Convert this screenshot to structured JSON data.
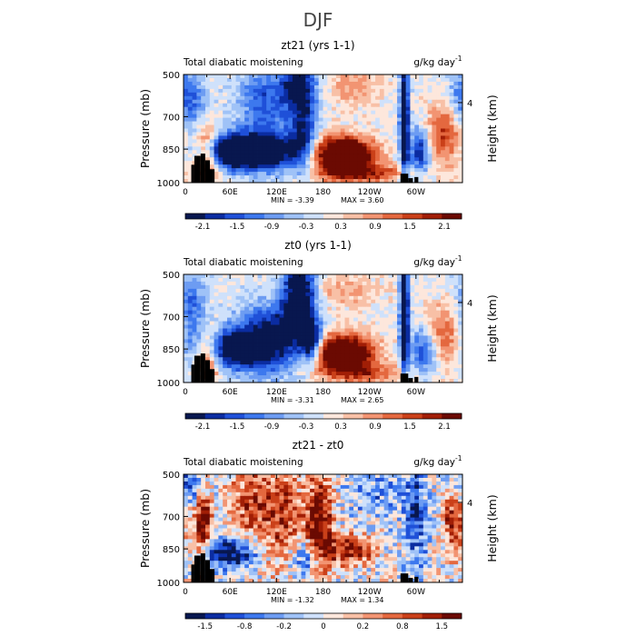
{
  "figure": {
    "title": "DJF"
  },
  "chart_data": [
    {
      "type": "heatmap",
      "title": "zt21 (yrs 1-1)",
      "left_label": "Total diabatic moistening",
      "right_label": "g/kg day",
      "right_label_exp": "-1",
      "ylabel": "Pressure (mb)",
      "y2label": "Height (km)",
      "y_ticks": [
        "500",
        "700",
        "850",
        "1000"
      ],
      "y2_ticks": [
        "4"
      ],
      "x_ticks": [
        "0",
        "60E",
        "120E",
        "180",
        "120W",
        "60W"
      ],
      "xlim": [
        0,
        360
      ],
      "ylim": [
        1000,
        500
      ],
      "min_text": "MIN =  -3.39",
      "max_text": "MAX =   3.60",
      "colorbar_labels": [
        "-2.1",
        "-1.5",
        "-0.9",
        "-0.3",
        "0.3",
        "0.9",
        "1.5",
        "2.1"
      ],
      "features": [
        {
          "lon": 30,
          "p": 880,
          "amp": 1.4,
          "wlon": 12,
          "wp": 90
        },
        {
          "lon": 60,
          "p": 860,
          "amp": -1.8,
          "wlon": 30,
          "wp": 50
        },
        {
          "lon": 105,
          "p": 860,
          "amp": -1.6,
          "wlon": 35,
          "wp": 60
        },
        {
          "lon": 105,
          "p": 620,
          "amp": -0.9,
          "wlon": 25,
          "wp": 120
        },
        {
          "lon": 150,
          "p": 560,
          "amp": -1.3,
          "wlon": 15,
          "wp": 80
        },
        {
          "lon": 155,
          "p": 780,
          "amp": -1.1,
          "wlon": 12,
          "wp": 120
        },
        {
          "lon": 205,
          "p": 880,
          "amp": 2.4,
          "wlon": 28,
          "wp": 60
        },
        {
          "lon": 240,
          "p": 960,
          "amp": 0.8,
          "wlon": 40,
          "wp": 30
        },
        {
          "lon": 285,
          "p": 700,
          "amp": -2.0,
          "wlon": 4,
          "wp": 200
        },
        {
          "lon": 305,
          "p": 860,
          "amp": -1.2,
          "wlon": 10,
          "wp": 80
        },
        {
          "lon": 340,
          "p": 780,
          "amp": 1.0,
          "wlon": 20,
          "wp": 100
        },
        {
          "lon": 220,
          "p": 560,
          "amp": 0.5,
          "wlon": 25,
          "wp": 60
        },
        {
          "lon": 5,
          "p": 650,
          "amp": -1.0,
          "wlon": 15,
          "wp": 120
        }
      ]
    },
    {
      "type": "heatmap",
      "title": "zt0 (yrs 1-1)",
      "left_label": "Total diabatic moistening",
      "right_label": "g/kg day",
      "right_label_exp": "-1",
      "ylabel": "Pressure (mb)",
      "y2label": "Height (km)",
      "y_ticks": [
        "500",
        "700",
        "850",
        "1000"
      ],
      "y2_ticks": [
        "4"
      ],
      "x_ticks": [
        "0",
        "60E",
        "120E",
        "180",
        "120W",
        "60W"
      ],
      "xlim": [
        0,
        360
      ],
      "ylim": [
        1000,
        500
      ],
      "min_text": "MIN =  -3.31",
      "max_text": "MAX =   2.65",
      "colorbar_labels": [
        "-2.1",
        "-1.5",
        "-0.9",
        "-0.3",
        "0.3",
        "0.9",
        "1.5",
        "2.1"
      ],
      "features": [
        {
          "lon": 30,
          "p": 880,
          "amp": 1.3,
          "wlon": 12,
          "wp": 90
        },
        {
          "lon": 60,
          "p": 850,
          "amp": -1.5,
          "wlon": 30,
          "wp": 60
        },
        {
          "lon": 110,
          "p": 800,
          "amp": -1.4,
          "wlon": 30,
          "wp": 110
        },
        {
          "lon": 150,
          "p": 600,
          "amp": -1.9,
          "wlon": 15,
          "wp": 140
        },
        {
          "lon": 165,
          "p": 820,
          "amp": -1.6,
          "wlon": 10,
          "wp": 60
        },
        {
          "lon": 205,
          "p": 870,
          "amp": 2.2,
          "wlon": 28,
          "wp": 60
        },
        {
          "lon": 240,
          "p": 960,
          "amp": 0.7,
          "wlon": 40,
          "wp": 30
        },
        {
          "lon": 285,
          "p": 700,
          "amp": -2.0,
          "wlon": 4,
          "wp": 200
        },
        {
          "lon": 310,
          "p": 860,
          "amp": -1.0,
          "wlon": 12,
          "wp": 80
        },
        {
          "lon": 340,
          "p": 780,
          "amp": 0.8,
          "wlon": 20,
          "wp": 100
        },
        {
          "lon": 200,
          "p": 580,
          "amp": 0.4,
          "wlon": 40,
          "wp": 60
        },
        {
          "lon": 10,
          "p": 700,
          "amp": -0.9,
          "wlon": 15,
          "wp": 150
        }
      ]
    },
    {
      "type": "heatmap",
      "title": "zt21 - zt0",
      "left_label": "Total diabatic moistening",
      "right_label": "g/kg day",
      "right_label_exp": "-1",
      "ylabel": "Pressure (mb)",
      "y2label": "Height (km)",
      "y_ticks": [
        "500",
        "700",
        "850",
        "1000"
      ],
      "y2_ticks": [
        "4"
      ],
      "x_ticks": [
        "0",
        "60E",
        "120E",
        "180",
        "120W",
        "60W"
      ],
      "xlim": [
        0,
        360
      ],
      "ylim": [
        1000,
        500
      ],
      "min_text": "MIN =  -1.32",
      "max_text": "MAX =   1.34",
      "colorbar_labels": [
        "-1.5",
        "-0.8",
        "-0.2",
        "0",
        "0.2",
        "0.8",
        "1.5"
      ],
      "features": [
        {
          "lon": 25,
          "p": 720,
          "amp": 0.9,
          "wlon": 8,
          "wp": 120
        },
        {
          "lon": 60,
          "p": 870,
          "amp": -0.9,
          "wlon": 25,
          "wp": 50
        },
        {
          "lon": 90,
          "p": 650,
          "amp": 0.5,
          "wlon": 20,
          "wp": 150
        },
        {
          "lon": 130,
          "p": 700,
          "amp": 0.5,
          "wlon": 15,
          "wp": 180
        },
        {
          "lon": 175,
          "p": 750,
          "amp": 0.9,
          "wlon": 12,
          "wp": 180
        },
        {
          "lon": 215,
          "p": 850,
          "amp": 0.7,
          "wlon": 20,
          "wp": 50
        },
        {
          "lon": 160,
          "p": 900,
          "amp": -0.6,
          "wlon": 15,
          "wp": 60
        },
        {
          "lon": 300,
          "p": 700,
          "amp": -0.5,
          "wlon": 10,
          "wp": 200
        },
        {
          "lon": 350,
          "p": 720,
          "amp": 0.7,
          "wlon": 10,
          "wp": 100
        },
        {
          "lon": 10,
          "p": 560,
          "amp": -0.5,
          "wlon": 15,
          "wp": 80
        },
        {
          "lon": 250,
          "p": 600,
          "amp": -0.3,
          "wlon": 30,
          "wp": 100
        }
      ]
    }
  ]
}
